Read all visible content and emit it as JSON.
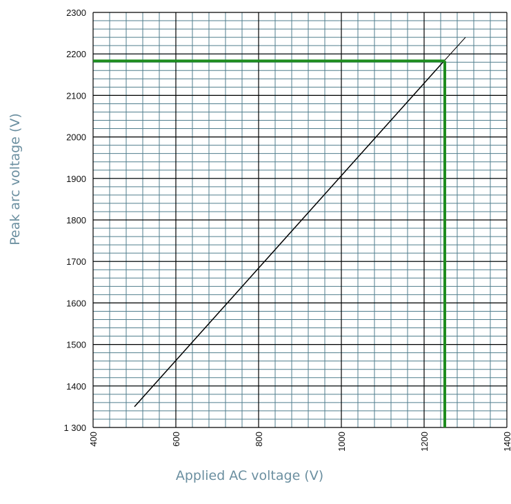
{
  "chart_data": {
    "type": "line",
    "title": "",
    "xlabel": "Applied AC voltage (V)",
    "ylabel": "Peak arc voltage (V)",
    "xlim": [
      400,
      1400
    ],
    "ylim": [
      1300,
      2300
    ],
    "x_ticks": [
      400,
      600,
      800,
      1000,
      1200,
      1400
    ],
    "x_tick_labels": [
      "400",
      "600",
      "800",
      "1000",
      "1200",
      "1400"
    ],
    "y_ticks": [
      1300,
      1400,
      1500,
      1600,
      1700,
      1800,
      1900,
      2000,
      2100,
      2200,
      2300
    ],
    "y_tick_labels": [
      "1 300",
      "1400",
      "1500",
      "1600",
      "1700",
      "1800",
      "1900",
      "2000",
      "2100",
      "2200",
      "2300"
    ],
    "x_minor_step": 40,
    "y_minor_step": 20,
    "grid": true,
    "series": [
      {
        "x": [
          500,
          1250
        ],
        "y": [
          1350,
          2185
        ],
        "color": "#000000"
      },
      {
        "x": [
          1250,
          1300
        ],
        "y": [
          2185,
          2240
        ],
        "color": "#000000"
      }
    ],
    "annotations": [
      {
        "type": "hline",
        "y": 2183,
        "x_from": 400,
        "x_to": 1250,
        "color": "#1e8c1e"
      },
      {
        "type": "vline",
        "x": 1250,
        "y_from": 1300,
        "y_to": 2183,
        "color": "#1e8c1e"
      }
    ],
    "colors": {
      "minor_grid": "#4f7d8c",
      "major_grid": "#000000",
      "curve": "#000000",
      "highlight": "#1e8c1e",
      "axis_title": "#6b8fa0"
    }
  }
}
